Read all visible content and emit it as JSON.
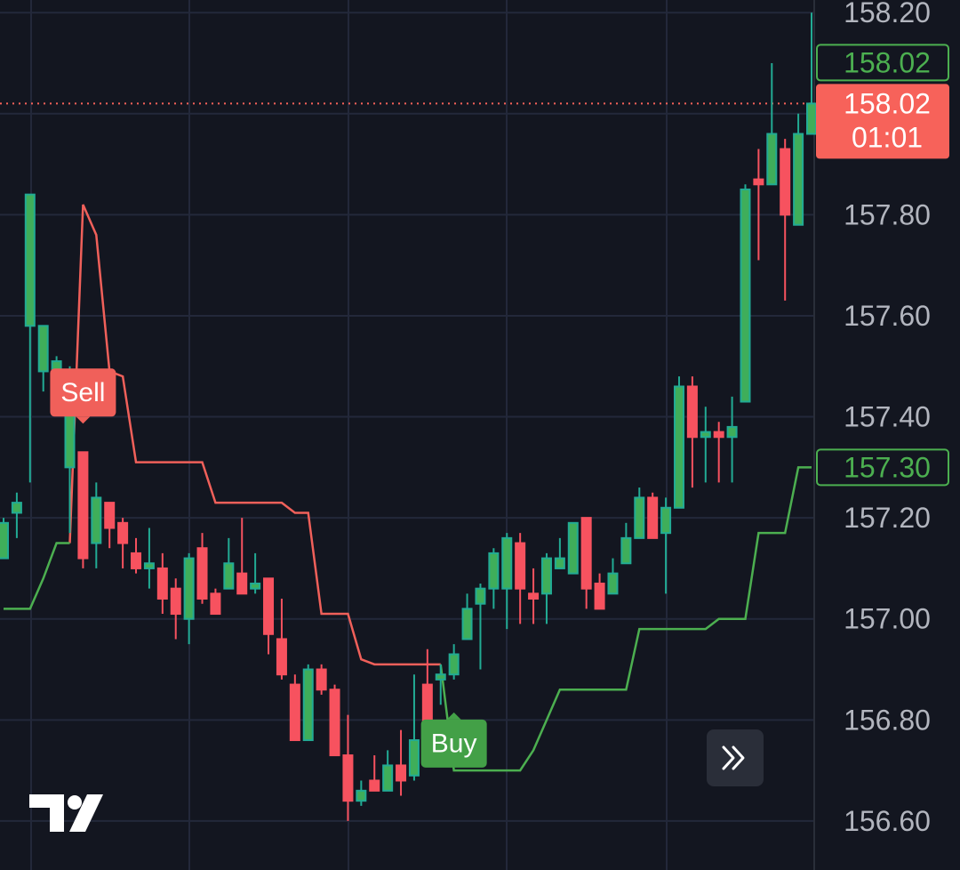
{
  "chart_data": {
    "type": "candlestick",
    "ylim": [
      156.503,
      158.225
    ],
    "yticks": [
      {
        "value": 158.2,
        "label": "158.20"
      },
      {
        "value": 158.0,
        "label": "158.00"
      },
      {
        "value": 157.8,
        "label": "157.80"
      },
      {
        "value": 157.6,
        "label": "157.60"
      },
      {
        "value": 157.4,
        "label": "157.40"
      },
      {
        "value": 157.2,
        "label": "157.20"
      },
      {
        "value": 157.0,
        "label": "157.00"
      },
      {
        "value": 156.8,
        "label": "156.80"
      },
      {
        "value": 156.6,
        "label": "156.60"
      }
    ],
    "hidden_yticks": [
      1
    ],
    "grid": true,
    "up_color": "#22ab94",
    "down_color": "#f7525f",
    "open": [
      157.12,
      157.21,
      157.58,
      157.49,
      157.49,
      157.3,
      157.33,
      157.15,
      157.23,
      157.19,
      157.13,
      157.1,
      157.1,
      157.06,
      157.0,
      157.14,
      157.05,
      157.06,
      157.09,
      157.06,
      157.08,
      156.96,
      156.87,
      156.76,
      156.9,
      156.86,
      156.73,
      156.64,
      156.68,
      156.66,
      156.71,
      156.69,
      156.87,
      156.88,
      156.89,
      156.96,
      157.03,
      157.06,
      157.06,
      157.15,
      157.05,
      157.05,
      157.1,
      157.09,
      157.2,
      157.07,
      157.05,
      157.11,
      157.16,
      157.24,
      157.17,
      157.22,
      157.46,
      157.36,
      157.37,
      157.36,
      157.43,
      157.87,
      157.86,
      157.93,
      157.78,
      157.96
    ],
    "high": [
      157.2,
      157.25,
      157.84,
      157.58,
      157.52,
      157.5,
      157.33,
      157.27,
      157.23,
      157.2,
      157.16,
      157.18,
      157.13,
      157.08,
      157.13,
      157.17,
      157.06,
      157.16,
      157.2,
      157.13,
      157.08,
      157.04,
      156.89,
      156.91,
      156.91,
      156.87,
      156.81,
      156.68,
      156.73,
      156.74,
      156.78,
      156.89,
      156.94,
      156.91,
      156.95,
      157.05,
      157.07,
      157.14,
      157.17,
      157.17,
      157.1,
      157.13,
      157.16,
      157.19,
      157.2,
      157.09,
      157.12,
      157.19,
      157.26,
      157.25,
      157.24,
      157.48,
      157.48,
      157.42,
      157.39,
      157.44,
      157.86,
      157.93,
      158.1,
      157.95,
      158.0,
      158.2
    ],
    "low": [
      157.12,
      157.16,
      157.27,
      157.45,
      157.45,
      157.17,
      157.1,
      157.1,
      157.14,
      157.1,
      157.09,
      157.06,
      157.01,
      156.96,
      156.95,
      157.03,
      157.01,
      157.06,
      157.05,
      157.05,
      156.93,
      156.88,
      156.76,
      156.76,
      156.85,
      156.73,
      156.6,
      156.63,
      156.66,
      156.66,
      156.65,
      156.68,
      156.76,
      156.83,
      156.88,
      156.96,
      156.9,
      157.02,
      156.98,
      156.99,
      156.99,
      156.99,
      157.1,
      157.09,
      157.02,
      157.02,
      157.05,
      157.11,
      157.16,
      157.16,
      157.05,
      157.22,
      157.26,
      157.27,
      157.27,
      157.27,
      157.43,
      157.71,
      157.86,
      157.63,
      157.78,
      157.96
    ],
    "close": [
      157.19,
      157.23,
      157.84,
      157.58,
      157.51,
      157.48,
      157.12,
      157.24,
      157.18,
      157.15,
      157.1,
      157.11,
      157.04,
      157.01,
      157.12,
      157.04,
      157.01,
      157.11,
      157.05,
      157.07,
      156.97,
      156.89,
      156.76,
      156.9,
      156.86,
      156.73,
      156.64,
      156.66,
      156.66,
      156.71,
      156.68,
      156.76,
      156.77,
      156.89,
      156.93,
      157.02,
      157.06,
      157.13,
      157.16,
      157.06,
      157.04,
      157.12,
      157.12,
      157.19,
      157.06,
      157.02,
      157.09,
      157.16,
      157.24,
      157.16,
      157.22,
      157.46,
      157.36,
      157.37,
      157.36,
      157.38,
      157.85,
      157.86,
      157.96,
      157.8,
      157.96,
      158.02
    ],
    "series": [
      {
        "color": "#f0605a",
        "values": [
          null,
          null,
          null,
          null,
          null,
          157.15,
          157.82,
          157.76,
          157.49,
          157.48,
          157.31,
          157.31,
          157.31,
          157.31,
          157.31,
          157.31,
          157.23,
          157.23,
          157.23,
          157.23,
          157.23,
          157.23,
          157.21,
          157.21,
          157.01,
          157.01,
          157.01,
          156.92,
          156.91,
          156.91,
          156.91,
          156.91,
          156.91,
          156.91,
          null,
          null,
          null,
          null,
          null,
          null,
          null,
          null,
          null,
          null,
          null,
          null,
          null,
          null,
          null,
          null,
          null,
          null,
          null,
          null,
          null,
          null,
          null,
          null,
          null,
          null,
          null,
          null
        ]
      },
      {
        "color": "#4caf50",
        "values": [
          157.02,
          157.02,
          157.02,
          157.08,
          157.15,
          157.15,
          null,
          null,
          null,
          null,
          null,
          null,
          null,
          null,
          null,
          null,
          null,
          null,
          null,
          null,
          null,
          null,
          null,
          null,
          null,
          null,
          null,
          null,
          null,
          null,
          null,
          null,
          null,
          156.91,
          156.7,
          156.7,
          156.7,
          156.7,
          156.7,
          156.7,
          156.74,
          156.8,
          156.86,
          156.86,
          156.86,
          156.86,
          156.86,
          156.86,
          156.98,
          156.98,
          156.98,
          156.98,
          156.98,
          156.98,
          157.0,
          157.0,
          157.0,
          157.17,
          157.17,
          157.17,
          157.3,
          157.3
        ]
      }
    ],
    "signals": [
      {
        "label": "Sell",
        "index": 6,
        "side": "sell",
        "color": "#f0605a"
      },
      {
        "label": "Buy",
        "index": 34,
        "side": "buy",
        "color": "#43a047"
      }
    ],
    "last_price": {
      "value": 158.02,
      "label": "158.02",
      "countdown": "01:01",
      "color": "#f7625a"
    },
    "price_labels": [
      {
        "value": 158.02,
        "label": "158.02",
        "color": "#4caf50"
      },
      {
        "value": 157.3,
        "label": "157.30",
        "color": "#4caf50"
      }
    ]
  }
}
